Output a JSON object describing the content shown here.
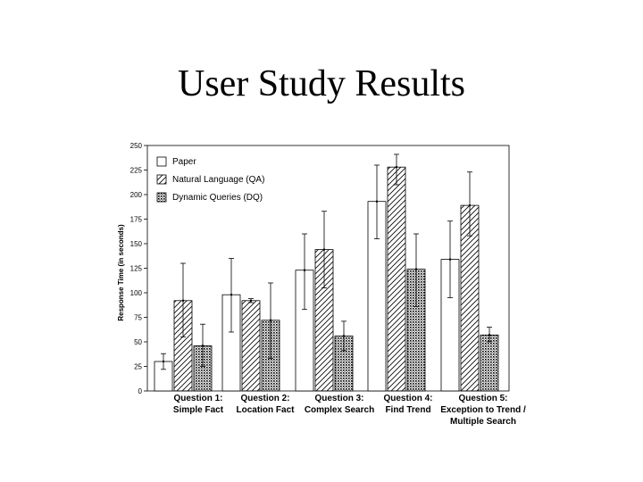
{
  "slide": {
    "title": "User Study Results"
  },
  "chart_data": {
    "type": "bar",
    "title": "",
    "xlabel": "",
    "ylabel": "Response Time (in seconds)",
    "ylim": [
      0,
      250
    ],
    "yticks": [
      0,
      25,
      50,
      75,
      100,
      125,
      150,
      175,
      200,
      225,
      250
    ],
    "grid": false,
    "legend_position": "top-left",
    "categories": [
      [
        "Question 1:",
        "Simple Fact"
      ],
      [
        "Question 2:",
        "Location Fact"
      ],
      [
        "Question 3:",
        "Complex Search"
      ],
      [
        "Question 4:",
        "Find Trend"
      ],
      [
        "Question 5:",
        "Exception to Trend /",
        "Multiple Search"
      ]
    ],
    "series": [
      {
        "name": "Paper",
        "pattern": "none",
        "values": [
          30,
          98,
          123,
          193,
          134
        ],
        "error_low": [
          22,
          60,
          83,
          155,
          95
        ],
        "error_high": [
          38,
          135,
          160,
          230,
          173
        ]
      },
      {
        "name": "Natural Language (QA)",
        "pattern": "hatch",
        "values": [
          92,
          92,
          144,
          228,
          189
        ],
        "error_low": [
          55,
          90,
          105,
          210,
          158
        ],
        "error_high": [
          130,
          94,
          183,
          241,
          223
        ]
      },
      {
        "name": "Dynamic Queries (DQ)",
        "pattern": "dots",
        "values": [
          46,
          72,
          56,
          124,
          57
        ],
        "error_low": [
          25,
          33,
          41,
          86,
          50
        ],
        "error_high": [
          68,
          110,
          71,
          160,
          65
        ]
      }
    ]
  }
}
